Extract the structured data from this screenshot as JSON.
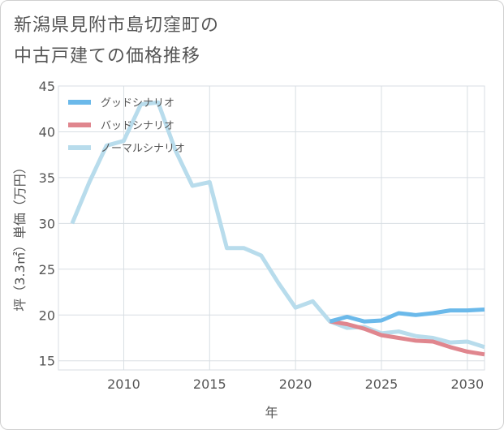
{
  "title_lines": [
    "新潟県見附市島切窪町の",
    "中古戸建ての価格推移"
  ],
  "chart_data": {
    "type": "line",
    "xlabel": "年",
    "ylabel": "坪（3.3㎡）単価（万円）",
    "xlim": [
      2006.2,
      2031.0
    ],
    "ylim": [
      14,
      45
    ],
    "xticks": [
      2010,
      2015,
      2020,
      2025,
      2030
    ],
    "yticks": [
      15,
      20,
      25,
      30,
      35,
      40,
      45
    ],
    "grid": true,
    "legend_position": "top-left",
    "series": [
      {
        "name": "グッドシナリオ",
        "color": "#6bb9ea",
        "x": [
          2022,
          2023,
          2024,
          2025,
          2026,
          2027,
          2028,
          2029,
          2030,
          2031
        ],
        "values": [
          19.3,
          19.8,
          19.3,
          19.4,
          20.2,
          20.0,
          20.2,
          20.5,
          20.5,
          20.6
        ]
      },
      {
        "name": "バッドシナリオ",
        "color": "#e0868e",
        "x": [
          2022,
          2023,
          2024,
          2025,
          2026,
          2027,
          2028,
          2029,
          2030,
          2031
        ],
        "values": [
          19.3,
          19.0,
          18.5,
          17.8,
          17.5,
          17.2,
          17.1,
          16.5,
          16.0,
          15.7
        ]
      },
      {
        "name": "ノーマルシナリオ",
        "color": "#b8dcec",
        "x": [
          2007,
          2008,
          2009,
          2010,
          2011,
          2012,
          2013,
          2014,
          2015,
          2016,
          2017,
          2018,
          2019,
          2020,
          2021,
          2022,
          2023,
          2024,
          2025,
          2026,
          2027,
          2028,
          2029,
          2030,
          2031
        ],
        "values": [
          30.0,
          34.5,
          38.5,
          39.0,
          43.0,
          43.2,
          38.0,
          34.1,
          34.5,
          27.3,
          27.3,
          26.5,
          23.5,
          20.8,
          21.5,
          19.3,
          18.6,
          18.7,
          18.0,
          18.2,
          17.7,
          17.5,
          17.0,
          17.1,
          16.5
        ]
      }
    ]
  }
}
